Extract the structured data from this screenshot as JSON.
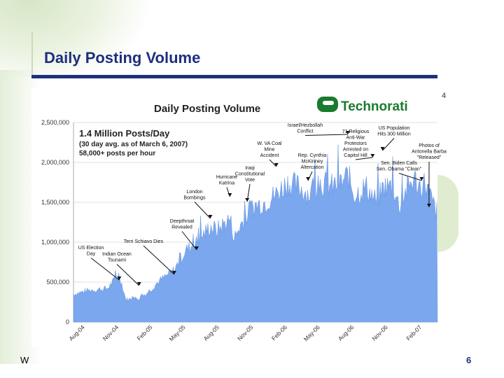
{
  "slide": {
    "title": "Daily Posting Volume",
    "side_number": "4",
    "footer_left": "W",
    "page_number": "6"
  },
  "logo": {
    "text": "Technorati",
    "color": "#1a7a2e"
  },
  "chart_data": {
    "type": "area",
    "title": "Daily Posting Volume",
    "color": "#7ba7ee",
    "ylim": [
      0,
      2500000
    ],
    "y_ticks": [
      "0",
      "500,000",
      "1,000,000",
      "1,500,000",
      "2,000,000",
      "2,500,000"
    ],
    "x_ticks": [
      "Aug-04",
      "Nov-04",
      "Feb-05",
      "May-05",
      "Aug-05",
      "Nov-05",
      "Feb-06",
      "May-06",
      "Aug-06",
      "Nov-06",
      "Feb-07"
    ],
    "info_lines": [
      "1.4 Million Posts/Day",
      "(30 day avg. as of March 6, 2007)",
      "58,000+ posts per hour"
    ],
    "x_start": "2004-07-01",
    "x_end": "2007-03-15",
    "series": [
      {
        "dates": [
          "2004-07-01",
          "2004-08-15",
          "2004-10-01",
          "2004-11-02",
          "2004-11-20",
          "2004-12-26",
          "2005-01-15",
          "2005-02-15",
          "2005-03-31",
          "2005-05-01",
          "2005-06-01",
          "2005-07-07",
          "2005-07-25",
          "2005-08-29",
          "2005-09-10",
          "2005-10-01",
          "2005-11-01",
          "2005-12-01",
          "2006-01-01",
          "2006-02-01",
          "2006-03-01",
          "2006-04-01",
          "2006-05-01",
          "2006-06-01",
          "2006-07-01",
          "2006-07-15",
          "2006-08-01",
          "2006-08-20",
          "2006-09-01",
          "2006-10-01",
          "2006-10-20",
          "2006-11-15",
          "2006-12-01",
          "2006-12-20",
          "2007-01-10",
          "2007-01-25",
          "2007-02-10",
          "2007-02-25",
          "2007-03-15"
        ],
        "values": [
          350000,
          400000,
          420000,
          600000,
          280000,
          300000,
          360000,
          500000,
          650000,
          900000,
          1000000,
          1200000,
          1150000,
          1300000,
          1050000,
          1250000,
          1450000,
          1500000,
          1600000,
          1750000,
          1700000,
          1600000,
          1750000,
          1700000,
          1750000,
          1850000,
          1600000,
          1650000,
          1700000,
          1500000,
          1700000,
          1700000,
          1450000,
          1650000,
          1800000,
          1700000,
          1750000,
          1550000,
          1350000
        ]
      }
    ],
    "annotations": [
      {
        "lines": [
          "US Election",
          "Day"
        ],
        "date": "2004-11-02"
      },
      {
        "lines": [
          "Indian Ocean",
          "Tsunami"
        ],
        "date": "2004-12-26"
      },
      {
        "lines": [
          "Terri Schiavo Dies"
        ],
        "date": "2005-03-31"
      },
      {
        "lines": [
          "Deepthroat",
          "Revealed"
        ],
        "date": "2005-05-31"
      },
      {
        "lines": [
          "London",
          "Bombings"
        ],
        "date": "2005-07-07"
      },
      {
        "lines": [
          "Hurricane",
          "Katrina"
        ],
        "date": "2005-08-29"
      },
      {
        "lines": [
          "Iraqi",
          "Constitutional",
          "Vote"
        ],
        "date": "2005-10-15"
      },
      {
        "lines": [
          "W. VA Coal",
          "Mine",
          "Accident"
        ],
        "date": "2006-01-02"
      },
      {
        "lines": [
          "Rep. Cynthia",
          "McKinney",
          "Altercation"
        ],
        "date": "2006-03-29"
      },
      {
        "lines": [
          "Israel/Hezbollah",
          "Conflict"
        ],
        "date": "2006-07-15"
      },
      {
        "lines": [
          "71 Religious",
          "Anti-War",
          "Protestors",
          "Arrested on",
          "Capitol Hill"
        ],
        "date": "2006-09-20"
      },
      {
        "lines": [
          "US Population",
          "Hits 300 Million"
        ],
        "date": "2006-10-17"
      },
      {
        "lines": [
          "Sen. Biden Calls",
          "Sen. Obama \"Clean\""
        ],
        "date": "2007-01-31"
      },
      {
        "lines": [
          "Photos of",
          "Antonella Barba",
          "\"Released\""
        ],
        "date": "2007-02-20"
      }
    ]
  }
}
